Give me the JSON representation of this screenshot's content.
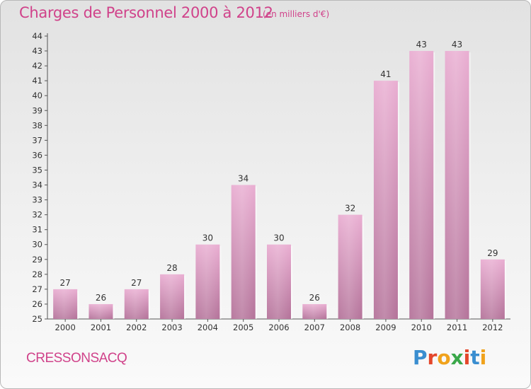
{
  "header": {
    "title": "Charges de Personnel 2000 à 2012",
    "unit": "(en milliers d'€)"
  },
  "footer": {
    "commune": "CRESSONSACQ",
    "logo_text": "Proxiti",
    "logo_colors": [
      "#3a8ed0",
      "#e4462b",
      "#f0a21c",
      "#3aa84a",
      "#e4462b",
      "#3a8ed0",
      "#f0a21c"
    ]
  },
  "colors": {
    "bar_top": "#e8a9cf",
    "bar_bottom": "#b06b94",
    "text": "#d0428a",
    "axis": "#555555"
  },
  "chart_data": {
    "type": "bar",
    "title": "Charges de Personnel 2000 à 2012",
    "subtitle": "(en milliers d'€)",
    "categories": [
      "2000",
      "2001",
      "2002",
      "2003",
      "2004",
      "2005",
      "2006",
      "2007",
      "2008",
      "2009",
      "2010",
      "2011",
      "2012"
    ],
    "values": [
      27,
      26,
      27,
      28,
      30,
      34,
      30,
      26,
      32,
      41,
      43,
      43,
      29
    ],
    "ylim": [
      25,
      44
    ],
    "yticks": [
      25,
      26,
      27,
      28,
      29,
      30,
      31,
      32,
      33,
      34,
      35,
      36,
      37,
      38,
      39,
      40,
      41,
      42,
      43,
      44
    ],
    "xlabel": "",
    "ylabel": "",
    "grid": false
  }
}
